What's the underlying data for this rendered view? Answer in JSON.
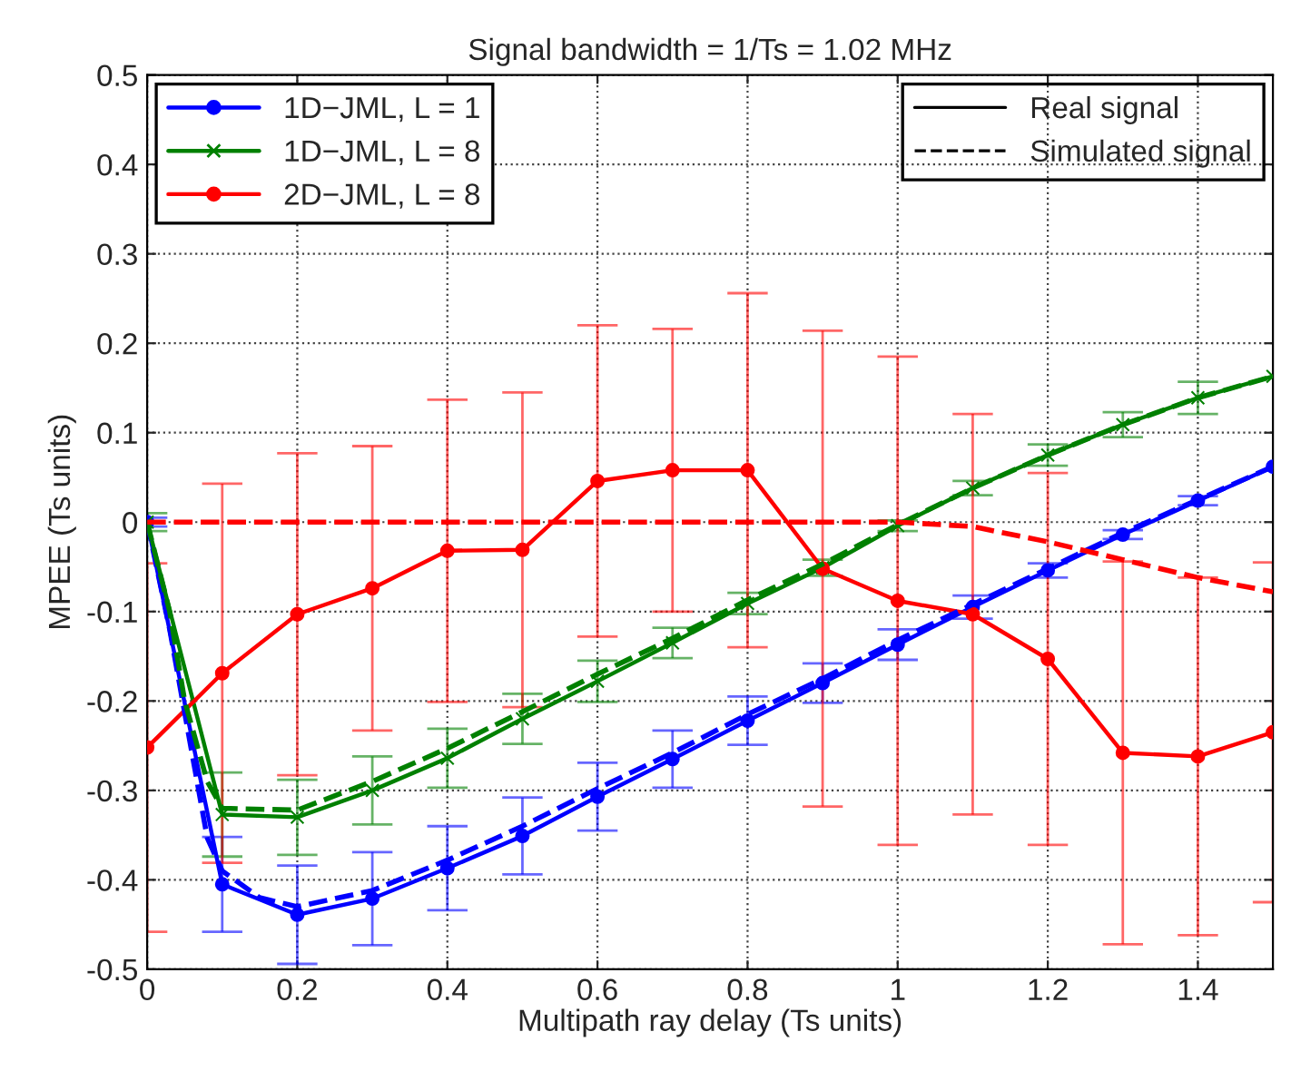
{
  "chart_data": {
    "type": "line",
    "title": "Signal bandwidth = 1/Ts = 1.02 MHz",
    "xlabel": "Multipath ray delay (Ts units)",
    "ylabel": "MPEE (Ts units)",
    "xlim": [
      0,
      1.5
    ],
    "ylim": [
      -0.5,
      0.5
    ],
    "xticks": [
      0,
      0.2,
      0.4,
      0.6,
      0.8,
      1,
      1.2,
      1.4
    ],
    "yticks": [
      -0.5,
      -0.4,
      -0.3,
      -0.2,
      -0.1,
      0,
      0.1,
      0.2,
      0.3,
      0.4,
      0.5
    ],
    "grid": true,
    "legend": "top left",
    "annotations": [
      "Real signal",
      "Simulated signal"
    ],
    "series": [
      {
        "name": "1D−JML, L = 1",
        "color": "#0000ff",
        "marker": "circle",
        "line_style": "solid",
        "x": [
          0,
          0.1,
          0.2,
          0.3,
          0.4,
          0.5,
          0.6,
          0.7,
          0.8,
          0.9,
          1,
          1.1,
          1.2,
          1.3,
          1.4,
          1.5
        ],
        "values": [
          0,
          -0.405,
          -0.439,
          -0.421,
          -0.387,
          -0.351,
          -0.307,
          -0.265,
          -0.222,
          -0.18,
          -0.137,
          -0.095,
          -0.054,
          -0.014,
          0.024,
          0.062
        ],
        "errors": [
          0.005,
          0.053,
          0.055,
          0.052,
          0.047,
          0.043,
          0.038,
          0.032,
          0.027,
          0.022,
          0.017,
          0.013,
          0.008,
          0.005,
          0.005,
          null
        ]
      },
      {
        "name": "1D−JML, L = 8",
        "color": "#008000",
        "marker": "cross",
        "line_style": "solid",
        "x": [
          0,
          0.1,
          0.2,
          0.3,
          0.4,
          0.5,
          0.6,
          0.7,
          0.8,
          0.9,
          1,
          1.1,
          1.2,
          1.3,
          1.4,
          1.5
        ],
        "values": [
          0,
          -0.327,
          -0.33,
          -0.3,
          -0.264,
          -0.22,
          -0.178,
          -0.135,
          -0.091,
          -0.051,
          -0.004,
          0.038,
          0.075,
          0.109,
          0.139,
          0.163
        ],
        "errors": [
          0.01,
          0.047,
          0.042,
          0.038,
          0.033,
          0.028,
          0.023,
          0.017,
          0.012,
          0.009,
          0.006,
          0.008,
          0.012,
          0.014,
          0.018,
          null
        ]
      },
      {
        "name": "2D−JML, L = 8",
        "color": "#ff0000",
        "marker": "circle",
        "line_style": "solid",
        "x": [
          0,
          0.1,
          0.2,
          0.3,
          0.4,
          0.5,
          0.6,
          0.7,
          0.8,
          0.9,
          1,
          1.1,
          1.2,
          1.3,
          1.4,
          1.5
        ],
        "values": [
          -0.252,
          -0.169,
          -0.103,
          -0.074,
          -0.032,
          -0.031,
          0.046,
          0.058,
          0.058,
          -0.052,
          -0.088,
          -0.103,
          -0.153,
          -0.258,
          -0.262,
          -0.235
        ],
        "errors": [
          0.206,
          0.212,
          0.18,
          0.159,
          0.169,
          0.176,
          0.174,
          0.158,
          0.198,
          0.266,
          0.273,
          0.224,
          0.208,
          0.214,
          0.2,
          0.19
        ]
      },
      {
        "color": "#0000ff",
        "marker": "none",
        "line_style": "dashed",
        "x": [
          0,
          0.03,
          0.08,
          0.1,
          0.15,
          0.2,
          0.3,
          0.4,
          0.5,
          0.6,
          0.7,
          0.8,
          0.9,
          1,
          1.1,
          1.2,
          1.3,
          1.4,
          1.5
        ],
        "values": [
          0,
          -0.12,
          -0.353,
          -0.39,
          -0.42,
          -0.43,
          -0.412,
          -0.378,
          -0.34,
          -0.298,
          -0.258,
          -0.215,
          -0.175,
          -0.132,
          -0.092,
          -0.052,
          -0.012,
          0.025,
          0.062
        ]
      },
      {
        "color": "#008000",
        "marker": "none",
        "line_style": "dashed",
        "x": [
          0,
          0.03,
          0.05,
          0.08,
          0.1,
          0.2,
          0.3,
          0.4,
          0.5,
          0.6,
          0.7,
          0.8,
          0.9,
          1,
          1.1,
          1.2,
          1.3,
          1.4,
          1.5
        ],
        "values": [
          0,
          -0.1,
          -0.2,
          -0.29,
          -0.32,
          -0.322,
          -0.29,
          -0.253,
          -0.212,
          -0.17,
          -0.13,
          -0.087,
          -0.047,
          -0.003,
          0.038,
          0.075,
          0.109,
          0.139,
          0.163
        ]
      },
      {
        "color": "#ff0000",
        "marker": "none",
        "line_style": "dashed",
        "x": [
          0,
          0.5,
          1,
          1.1,
          1.2,
          1.3,
          1.4,
          1.5
        ],
        "values": [
          0,
          0,
          0,
          -0.005,
          -0.022,
          -0.042,
          -0.062,
          -0.078
        ]
      }
    ]
  }
}
